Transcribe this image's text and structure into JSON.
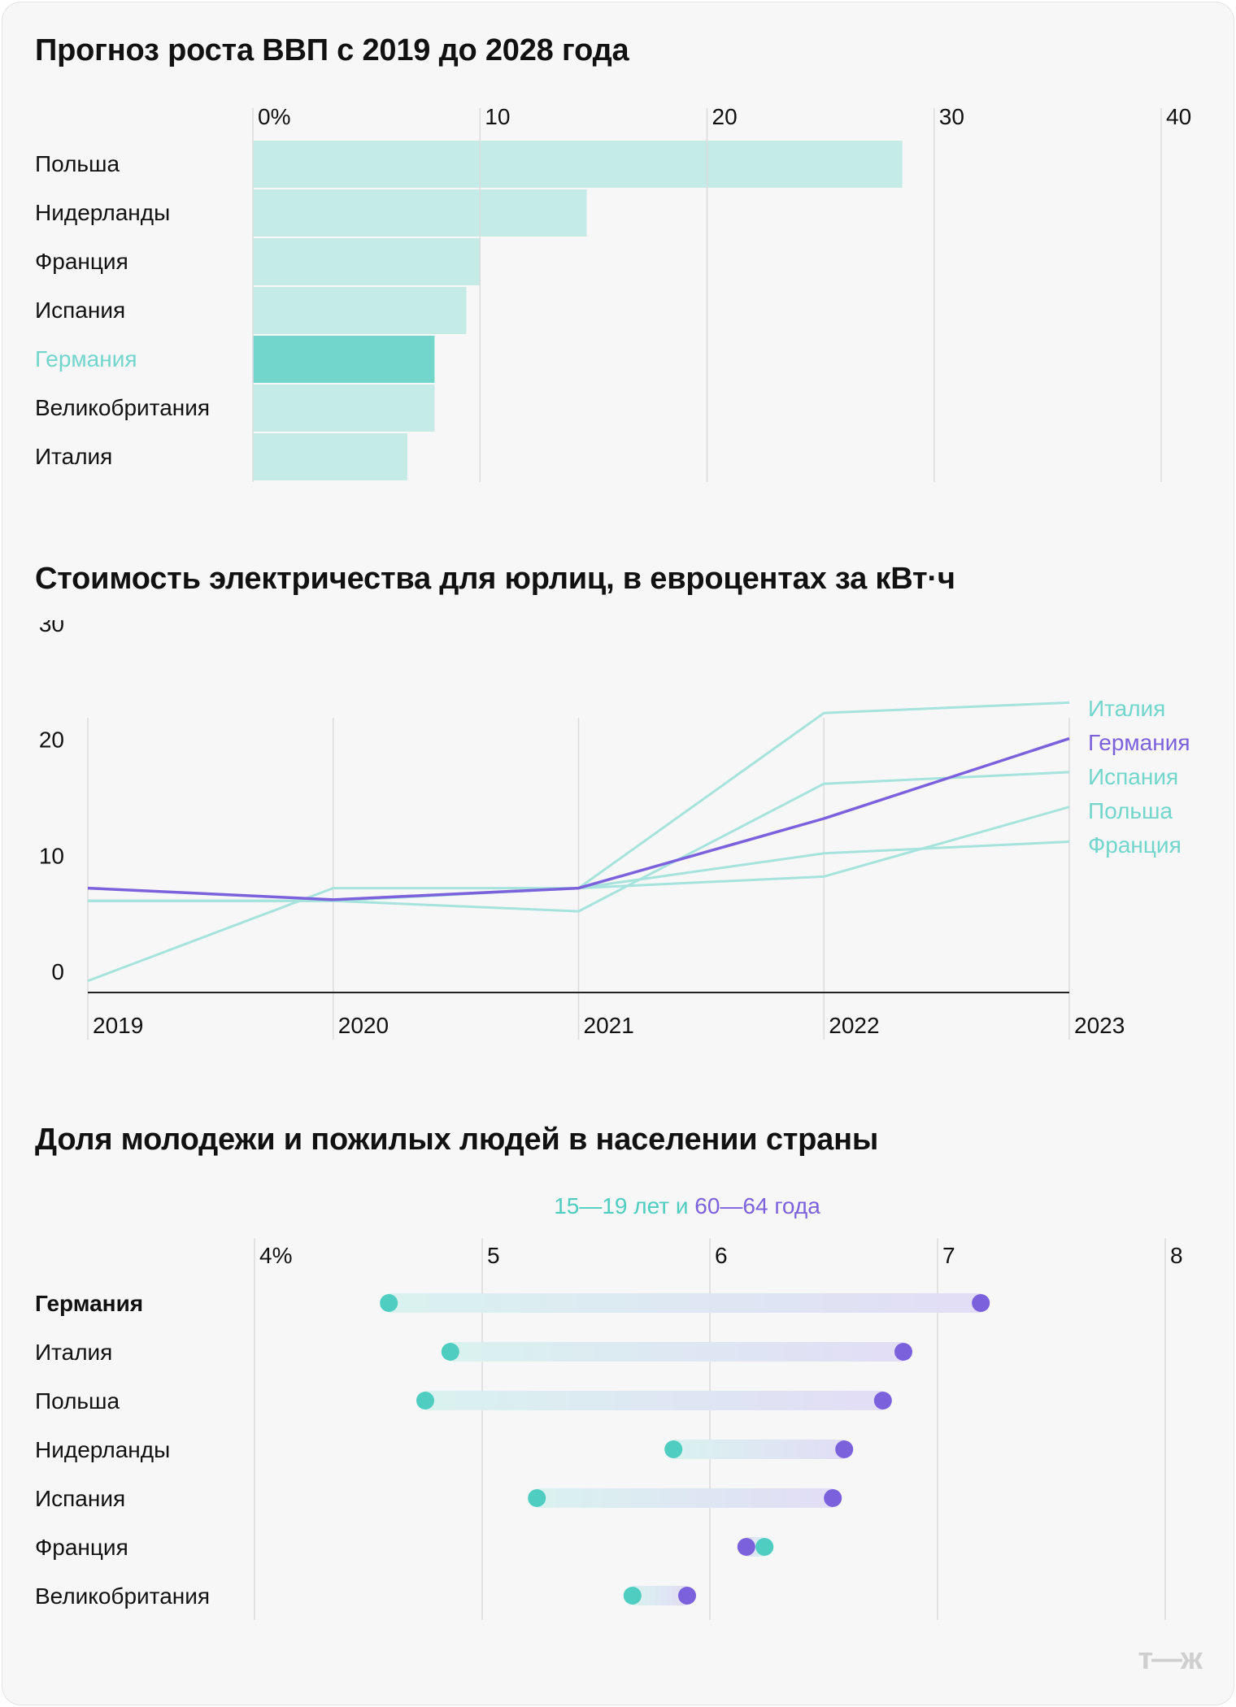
{
  "brand": {
    "logo_text": "т—ж"
  },
  "colors": {
    "teal_light": "#c5ebe7",
    "teal_highlight": "#72d6cd",
    "teal_line": "#a7e3dd",
    "teal_dot": "#4ecdc0",
    "purple": "#7b61dc",
    "axis": "#222222",
    "grid": "#dcdcdc",
    "label": "#111111"
  },
  "chart_data": [
    {
      "type": "bar",
      "orientation": "horizontal",
      "title": "Прогноз роста ВВП с 2019 до 2028 года",
      "categories": [
        "Польша",
        "Нидерланды",
        "Франция",
        "Испания",
        "Германия",
        "Великобритания",
        "Италия"
      ],
      "values": [
        28.6,
        14.7,
        10.0,
        9.4,
        8.0,
        8.0,
        6.8
      ],
      "highlight": "Германия",
      "xlim": [
        0,
        40
      ],
      "tick_values": [
        0,
        10,
        20,
        30,
        40
      ],
      "tick_labels": [
        "0%",
        "10",
        "20",
        "30",
        "40"
      ],
      "grid": true
    },
    {
      "type": "line",
      "title": "Стоимость электричества для юрлиц, в евроцентах за кВт·ч",
      "x": [
        "2019",
        "2020",
        "2021",
        "2022",
        "2023"
      ],
      "ylim": [
        0,
        30
      ],
      "y_ticks": [
        0,
        10,
        20,
        30
      ],
      "highlight": "Германия",
      "series": [
        {
          "name": "Италия",
          "values": [
            7.9,
            7.9,
            9.0,
            24.1,
            25.0
          ]
        },
        {
          "name": "Германия",
          "values": [
            9.0,
            8.0,
            9.0,
            15.0,
            21.9
          ]
        },
        {
          "name": "Испания",
          "values": [
            7.9,
            7.9,
            7.0,
            18.0,
            19.0
          ]
        },
        {
          "name": "Польша",
          "values": [
            1.0,
            9.0,
            9.0,
            10.0,
            16.0
          ]
        },
        {
          "name": "Франция",
          "values": [
            7.9,
            7.9,
            9.0,
            12.0,
            13.0
          ]
        }
      ],
      "label_order": [
        "Италия",
        "Германия",
        "Испания",
        "Польша",
        "Франция"
      ],
      "grid": true
    },
    {
      "type": "dumbbell",
      "title": "Доля молодежи и пожилых людей в населении страны",
      "legend": {
        "young": "15—19 лет",
        "joiner": " и ",
        "old": "60—64 года"
      },
      "categories": [
        "Германия",
        "Италия",
        "Польша",
        "Нидерланды",
        "Испания",
        "Франция",
        "Великобритания"
      ],
      "young_15_19": [
        4.59,
        4.86,
        4.75,
        5.84,
        5.24,
        6.24,
        5.66
      ],
      "old_60_64": [
        7.19,
        6.85,
        6.76,
        6.59,
        6.54,
        6.16,
        5.9
      ],
      "bold_category": "Германия",
      "xlim": [
        4,
        8
      ],
      "tick_values": [
        4,
        5,
        6,
        7,
        8
      ],
      "tick_labels": [
        "4%",
        "5",
        "6",
        "7",
        "8"
      ],
      "grid": true
    }
  ]
}
